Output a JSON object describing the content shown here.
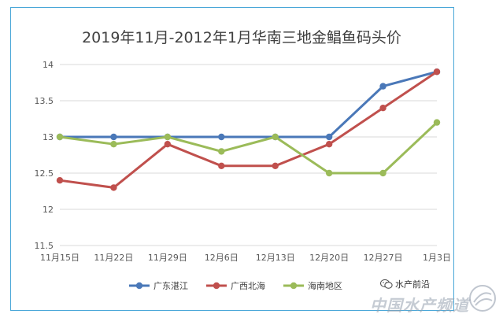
{
  "chart_data": {
    "type": "line",
    "title": "2019年11月-2012年1月华南三地金鲳鱼码头价",
    "categories": [
      "11月15日",
      "11月22日",
      "11月29日",
      "12月6日",
      "12月13日",
      "12月20日",
      "12月27日",
      "1月3日"
    ],
    "series": [
      {
        "name": "广东湛江",
        "color": "#4a78b8",
        "values": [
          13,
          13,
          13,
          13,
          13,
          13,
          13.7,
          13.9
        ]
      },
      {
        "name": "广西北海",
        "color": "#c0504d",
        "values": [
          12.4,
          12.3,
          12.9,
          12.6,
          12.6,
          12.9,
          13.4,
          13.9
        ]
      },
      {
        "name": "海南地区",
        "color": "#9bbb59",
        "values": [
          13,
          12.9,
          13,
          12.8,
          13,
          12.5,
          12.5,
          13.2
        ]
      }
    ],
    "yticks": [
      "11.5",
      "12",
      "12.5",
      "13",
      "13.5",
      "14"
    ],
    "ylim": [
      11.5,
      14
    ],
    "grid": true,
    "legend": "bottom"
  },
  "watermark": {
    "source_label": "水产前沿",
    "site_name": "中国水产频道"
  }
}
